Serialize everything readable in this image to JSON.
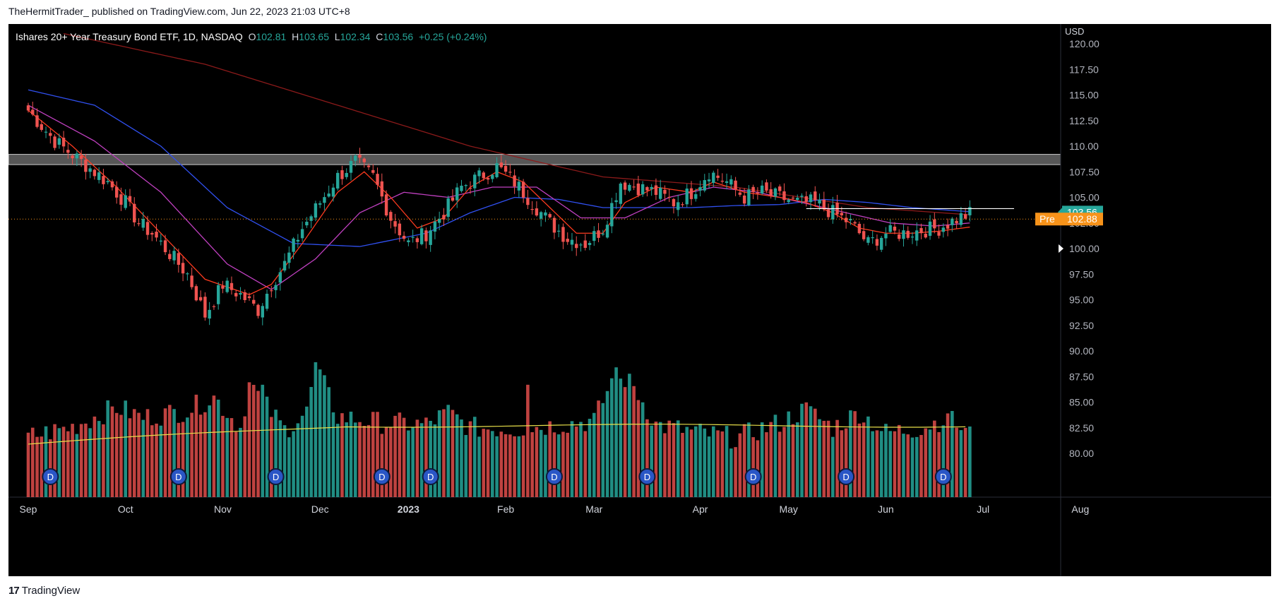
{
  "header": {
    "published_text": "TheHermitTrader_ published on TradingView.com, Jun 22, 2023 21:03 UTC+8"
  },
  "footer": {
    "brand": "TradingView",
    "logo_glyph": "17"
  },
  "legend": {
    "title": "Ishares 20+ Year Treasury Bond ETF, 1D, NASDAQ",
    "o_label": "O",
    "o_value": "102.81",
    "h_label": "H",
    "h_value": "103.65",
    "l_label": "L",
    "l_value": "102.34",
    "c_label": "C",
    "c_value": "103.56",
    "change": "+0.25 (+0.24%)"
  },
  "colors": {
    "up": "#26a69a",
    "down": "#ef5350",
    "background": "#000000",
    "ma_fast": "#ff3b1f",
    "ma_mid": "#c040c0",
    "ma_slow": "#3050f0",
    "ma_long": "#8b1a1a",
    "vol_ma": "#e8e04a",
    "price_tag": "#26a69a",
    "pre_tag": "#f7931a",
    "resistance_zone": "#9e9e9e",
    "dividend_icon": "#2a56c6"
  },
  "chart_data": {
    "type": "candlestick",
    "currency_label": "USD",
    "y_ticks": [
      "120.00",
      "117.50",
      "115.00",
      "112.50",
      "110.00",
      "107.50",
      "105.00",
      "102.50",
      "100.00",
      "97.50",
      "95.00",
      "92.50",
      "90.00",
      "87.50",
      "85.00",
      "82.50",
      "80.00"
    ],
    "y_tick_values": [
      120,
      117.5,
      115,
      112.5,
      110,
      107.5,
      105,
      102.5,
      100,
      97.5,
      95,
      92.5,
      90,
      87.5,
      85,
      82.5,
      80
    ],
    "ylim": [
      77.8,
      121.5
    ],
    "x_ticks": [
      {
        "label": "Sep",
        "day": 0
      },
      {
        "label": "Oct",
        "day": 22
      },
      {
        "label": "Nov",
        "day": 44
      },
      {
        "label": "Dec",
        "day": 66
      },
      {
        "label": "2023",
        "day": 86
      },
      {
        "label": "Feb",
        "day": 108
      },
      {
        "label": "Mar",
        "day": 128
      },
      {
        "label": "Apr",
        "day": 152
      },
      {
        "label": "May",
        "day": 172
      },
      {
        "label": "Jun",
        "day": 194
      },
      {
        "label": "Jul",
        "day": 216
      },
      {
        "label": "Aug",
        "day": 238
      }
    ],
    "bold_x_tick": "2023",
    "last_day": 213,
    "price_anchors": [
      [
        0,
        113.5
      ],
      [
        6,
        110.5
      ],
      [
        12,
        108.5
      ],
      [
        18,
        106.5
      ],
      [
        22,
        104.5
      ],
      [
        25,
        102.5
      ],
      [
        28,
        101.5
      ],
      [
        32,
        99.5
      ],
      [
        36,
        97.5
      ],
      [
        40,
        93.5
      ],
      [
        44,
        96.5
      ],
      [
        48,
        95.5
      ],
      [
        52,
        94.0
      ],
      [
        55,
        96.5
      ],
      [
        58,
        98.5
      ],
      [
        62,
        102.0
      ],
      [
        66,
        104.5
      ],
      [
        70,
        107.0
      ],
      [
        74,
        108.5
      ],
      [
        78,
        107.0
      ],
      [
        82,
        103.0
      ],
      [
        86,
        100.5
      ],
      [
        90,
        101.5
      ],
      [
        94,
        103.5
      ],
      [
        98,
        106.0
      ],
      [
        102,
        107.0
      ],
      [
        106,
        108.0
      ],
      [
        110,
        106.5
      ],
      [
        114,
        104.5
      ],
      [
        118,
        102.5
      ],
      [
        122,
        101.0
      ],
      [
        126,
        100.5
      ],
      [
        130,
        102.0
      ],
      [
        134,
        106.5
      ],
      [
        138,
        106.0
      ],
      [
        142,
        105.5
      ],
      [
        146,
        104.5
      ],
      [
        150,
        105.5
      ],
      [
        154,
        107.5
      ],
      [
        158,
        106.5
      ],
      [
        162,
        105.0
      ],
      [
        166,
        105.5
      ],
      [
        170,
        105.0
      ],
      [
        174,
        104.5
      ],
      [
        178,
        104.5
      ],
      [
        182,
        103.5
      ],
      [
        186,
        102.5
      ],
      [
        190,
        100.5
      ],
      [
        194,
        101.5
      ],
      [
        198,
        101.5
      ],
      [
        202,
        101.8
      ],
      [
        206,
        102.0
      ],
      [
        210,
        102.9
      ],
      [
        213,
        103.4
      ]
    ],
    "ma_long_anchors": [
      [
        8,
        121
      ],
      [
        40,
        118
      ],
      [
        70,
        114
      ],
      [
        100,
        110
      ],
      [
        130,
        107
      ],
      [
        160,
        106
      ],
      [
        190,
        104
      ],
      [
        213,
        103.3
      ]
    ],
    "ma_slow_anchors": [
      [
        0,
        115.5
      ],
      [
        15,
        114
      ],
      [
        30,
        110
      ],
      [
        45,
        104
      ],
      [
        60,
        100.5
      ],
      [
        75,
        100.2
      ],
      [
        90,
        101.5
      ],
      [
        100,
        103.5
      ],
      [
        110,
        105
      ],
      [
        120,
        104.8
      ],
      [
        130,
        104
      ],
      [
        140,
        104
      ],
      [
        150,
        104
      ],
      [
        160,
        104.2
      ],
      [
        170,
        104.3
      ],
      [
        180,
        104.8
      ],
      [
        190,
        104.5
      ],
      [
        200,
        104
      ],
      [
        213,
        103.6
      ]
    ],
    "ma_mid_anchors": [
      [
        0,
        114
      ],
      [
        15,
        110.5
      ],
      [
        30,
        105.5
      ],
      [
        45,
        98.5
      ],
      [
        55,
        96
      ],
      [
        65,
        99
      ],
      [
        75,
        103.5
      ],
      [
        85,
        105.5
      ],
      [
        95,
        105
      ],
      [
        105,
        106
      ],
      [
        115,
        106
      ],
      [
        125,
        103
      ],
      [
        135,
        103
      ],
      [
        145,
        105
      ],
      [
        155,
        106
      ],
      [
        165,
        105.5
      ],
      [
        175,
        104.5
      ],
      [
        185,
        103.5
      ],
      [
        195,
        102.5
      ],
      [
        205,
        102.2
      ],
      [
        213,
        102.5
      ]
    ],
    "ma_fast_anchors": [
      [
        0,
        113.5
      ],
      [
        10,
        110
      ],
      [
        20,
        106
      ],
      [
        30,
        101.5
      ],
      [
        40,
        97
      ],
      [
        50,
        95.5
      ],
      [
        55,
        96.5
      ],
      [
        62,
        100.5
      ],
      [
        70,
        105.5
      ],
      [
        76,
        107.5
      ],
      [
        82,
        105
      ],
      [
        88,
        102
      ],
      [
        94,
        103
      ],
      [
        100,
        106
      ],
      [
        106,
        107.5
      ],
      [
        112,
        106.5
      ],
      [
        118,
        104
      ],
      [
        124,
        101.5
      ],
      [
        130,
        101.5
      ],
      [
        135,
        104.5
      ],
      [
        142,
        106
      ],
      [
        150,
        105.5
      ],
      [
        155,
        106.5
      ],
      [
        162,
        105.5
      ],
      [
        170,
        105
      ],
      [
        176,
        104.5
      ],
      [
        182,
        103.5
      ],
      [
        188,
        102
      ],
      [
        194,
        101.5
      ],
      [
        200,
        101.5
      ],
      [
        206,
        101.7
      ],
      [
        213,
        102.1
      ]
    ],
    "volume_ma_level": 82.7,
    "volume_base": 77.8,
    "volume_anchors": [
      [
        0,
        81.6
      ],
      [
        10,
        82.6
      ],
      [
        20,
        84.5
      ],
      [
        26,
        83.5
      ],
      [
        36,
        84.2
      ],
      [
        42,
        85.5
      ],
      [
        48,
        82.5
      ],
      [
        50,
        86.8
      ],
      [
        58,
        82.3
      ],
      [
        63,
        84.0
      ],
      [
        65,
        88.6
      ],
      [
        70,
        83.6
      ],
      [
        80,
        83.0
      ],
      [
        90,
        82.8
      ],
      [
        95,
        84.0
      ],
      [
        100,
        82.5
      ],
      [
        110,
        82.4
      ],
      [
        120,
        82.8
      ],
      [
        128,
        83.2
      ],
      [
        133,
        88.0
      ],
      [
        137,
        86.5
      ],
      [
        142,
        82.8
      ],
      [
        152,
        82.0
      ],
      [
        160,
        81.5
      ],
      [
        170,
        83.0
      ],
      [
        176,
        84.3
      ],
      [
        182,
        82.5
      ],
      [
        188,
        84.0
      ],
      [
        194,
        82.0
      ],
      [
        202,
        82.5
      ],
      [
        208,
        83.5
      ],
      [
        213,
        81.8
      ]
    ],
    "volume_overrides": [
      [
        53,
        86.7
      ],
      [
        65,
        88.9
      ],
      [
        113,
        86.7
      ],
      [
        133,
        88.4
      ],
      [
        134,
        87.3
      ],
      [
        177,
        84.6
      ],
      [
        208,
        83.9
      ]
    ],
    "resistance_zone": [
      108.2,
      109.2
    ],
    "white_level": {
      "price": 103.9,
      "from_day": 176,
      "to_day": 223
    },
    "price_tag": {
      "label": "103.56",
      "value": 103.56
    },
    "pre_tag": {
      "prefix": "Pre",
      "label": "102.88",
      "value": 102.88
    },
    "prev_close_marker": 100.0,
    "dividend_label": "D",
    "dividend_days": [
      5,
      34,
      56,
      80,
      91,
      119,
      140,
      164,
      185,
      207
    ]
  }
}
